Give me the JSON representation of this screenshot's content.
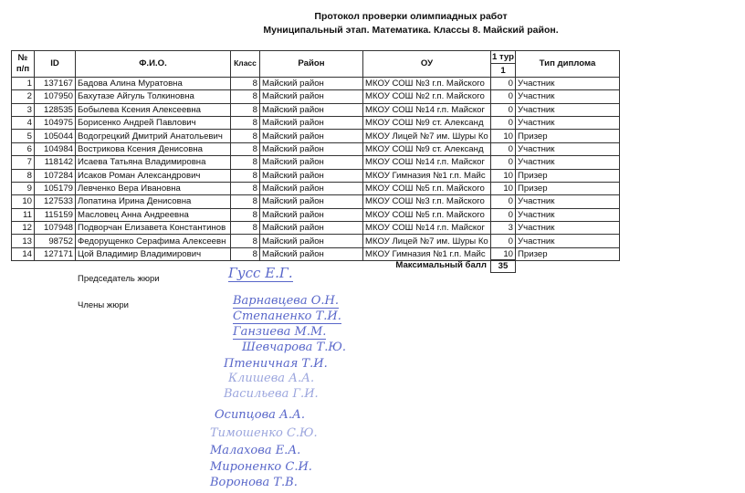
{
  "header": {
    "title": "Протокол проверки олимпиадных работ",
    "subtitle": "Муниципальный этап. Математика. Классы 8. Майский район."
  },
  "table": {
    "columns": {
      "num": "№ п/п",
      "id": "ID",
      "name": "Ф.И.О.",
      "grade": "Класс",
      "district": "Район",
      "school": "ОУ",
      "round": "1 тур",
      "round_sub": "1",
      "diploma": "Тип диплома"
    },
    "rows": [
      {
        "num": "1",
        "id": "137167",
        "name": "Бадова Алина Муратовна",
        "grade": "8",
        "district": "Майский район",
        "school": "МКОУ СОШ №3 г.п. Майского",
        "score": "0",
        "diploma": "Участник"
      },
      {
        "num": "2",
        "id": "107950",
        "name": "Бахутазе Айгуль Толкиновна",
        "grade": "8",
        "district": "Майский район",
        "school": "МКОУ СОШ №2 г.п. Майского",
        "score": "0",
        "diploma": "Участник"
      },
      {
        "num": "3",
        "id": "128535",
        "name": "Бобылева Ксения Алексеевна",
        "grade": "8",
        "district": "Майский район",
        "school": "МКОУ СОШ №14 г.п. Майског",
        "score": "0",
        "diploma": "Участник"
      },
      {
        "num": "4",
        "id": "104975",
        "name": "Борисенко Андрей Павлович",
        "grade": "8",
        "district": "Майский район",
        "school": "МКОУ СОШ №9 ст. Александ",
        "score": "0",
        "diploma": "Участник"
      },
      {
        "num": "5",
        "id": "105044",
        "name": "Водогрецкий Дмитрий Анатольевич",
        "grade": "8",
        "district": "Майский район",
        "school": "МКОУ Лицей №7 им. Шуры Ко",
        "score": "10",
        "diploma": "Призер"
      },
      {
        "num": "6",
        "id": "104984",
        "name": "Вострикова Ксения Денисовна",
        "grade": "8",
        "district": "Майский район",
        "school": "МКОУ СОШ №9 ст. Александ",
        "score": "0",
        "diploma": "Участник"
      },
      {
        "num": "7",
        "id": "118142",
        "name": "Исаева Татьяна Владимировна",
        "grade": "8",
        "district": "Майский район",
        "school": "МКОУ СОШ №14 г.п. Майског",
        "score": "0",
        "diploma": "Участник"
      },
      {
        "num": "8",
        "id": "107284",
        "name": "Исаков Роман Александрович",
        "grade": "8",
        "district": "Майский район",
        "school": "МКОУ Гимназия №1 г.п. Майс",
        "score": "10",
        "diploma": "Призер"
      },
      {
        "num": "9",
        "id": "105179",
        "name": "Левченко Вера Ивановна",
        "grade": "8",
        "district": "Майский район",
        "school": "МКОУ СОШ №5 г.п. Майского",
        "score": "10",
        "diploma": "Призер"
      },
      {
        "num": "10",
        "id": "127533",
        "name": "Лопатина Ирина Денисовна",
        "grade": "8",
        "district": "Майский район",
        "school": "МКОУ СОШ №3 г.п. Майского",
        "score": "0",
        "diploma": "Участник"
      },
      {
        "num": "11",
        "id": "115159",
        "name": "Масловец Анна Андреевна",
        "grade": "8",
        "district": "Майский район",
        "school": "МКОУ СОШ №5 г.п. Майского",
        "score": "0",
        "diploma": "Участник"
      },
      {
        "num": "12",
        "id": "107948",
        "name": "Подворчан Елизавета Константинов",
        "grade": "8",
        "district": "Майский район",
        "school": "МКОУ СОШ №14 г.п. Майског",
        "score": "3",
        "diploma": "Участник"
      },
      {
        "num": "13",
        "id": "98752",
        "name": "Федорущенко Серафима Алексеевн",
        "grade": "8",
        "district": "Майский район",
        "school": "МКОУ Лицей №7 им. Шуры Ко",
        "score": "0",
        "diploma": "Участник"
      },
      {
        "num": "14",
        "id": "127171",
        "name": "Цой Владимир Владимирович",
        "grade": "8",
        "district": "Майский район",
        "school": "МКОУ Гимназия №1 г.п. Майс",
        "score": "10",
        "diploma": "Призер"
      }
    ],
    "max_score_label": "Максимальный балл",
    "max_score": "35"
  },
  "jury": {
    "chair_label": "Председатель жюри",
    "members_label": "Члены жюри",
    "chair_signature": "Гусс Е.Г.",
    "member_signatures": [
      "Варнавцева О.Н.",
      "Степаненко Т.И.",
      "Ганзиева М.М.",
      "Шевчарова Т.Ю.",
      "Птеничная Т.И.",
      "Клишева А.А.",
      "Васильева Г.И.",
      "Осипцова А.А.",
      "Тимошенко С.Ю.",
      "Малахова Е.А.",
      "Мироненко С.И.",
      "Воронова Т.В."
    ]
  }
}
